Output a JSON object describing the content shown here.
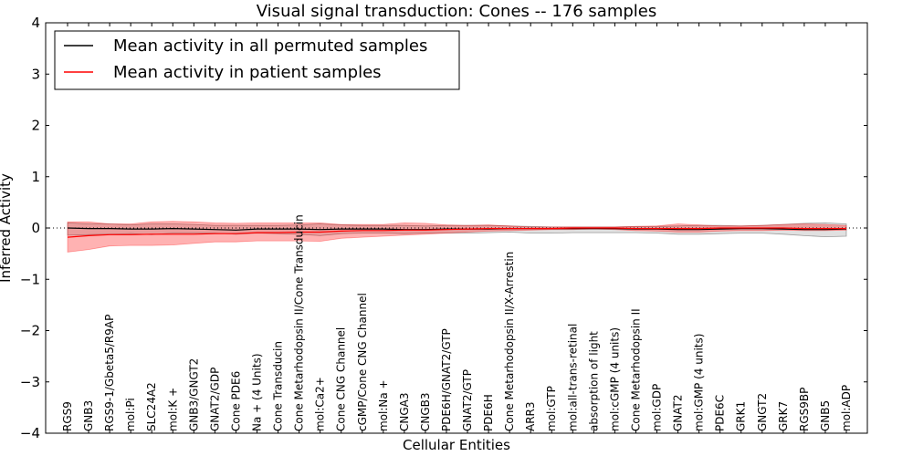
{
  "chart_data": {
    "type": "line",
    "title": "Visual signal transduction: Cones -- 176 samples",
    "xlabel": "Cellular Entities",
    "ylabel": "Inferred Activity",
    "ylim": [
      -4,
      4
    ],
    "yticks": [
      -4,
      -3,
      -2,
      -1,
      0,
      1,
      2,
      3,
      4
    ],
    "ytick_labels": [
      "−4",
      "−3",
      "−2",
      "−1",
      "0",
      "1",
      "2",
      "3",
      "4"
    ],
    "legend_position": "top-left",
    "categories": [
      "RGS9",
      "GNB3",
      "RGS9-1/Gbeta5/R9AP",
      "mol:Pi",
      "SLC24A2",
      "mol:K +",
      "GNB3/GNGT2",
      "GNAT2/GDP",
      "Cone PDE6",
      "Na + (4 Units)",
      "Cone Transducin",
      "Cone Metarhodopsin II/Cone Transducin",
      "mol:Ca2+",
      "Cone CNG Channel",
      "cGMP/Cone CNG Channel",
      "mol:Na +",
      "CNGA3",
      "CNGB3",
      "PDE6H/GNAT2/GTP",
      "GNAT2/GTP",
      "PDE6H",
      "Cone Metarhodopsin II/X-Arrestin",
      "ARR3",
      "mol:GTP",
      "mol:all-trans-retinal",
      "absorption of light",
      "mol:cGMP (4 units)",
      "Cone Metarhodopsin II",
      "mol:GDP",
      "GNAT2",
      "mol:GMP (4 units)",
      "PDE6C",
      "GRK1",
      "GNGT2",
      "GRK7",
      "RGS9BP",
      "GNB5",
      "mol:ADP"
    ],
    "series": [
      {
        "name": "Mean activity in all permuted samples",
        "color": "#000000",
        "values": [
          0,
          -0.01,
          -0.01,
          -0.02,
          -0.02,
          -0.01,
          -0.02,
          -0.03,
          -0.04,
          -0.02,
          -0.02,
          -0.02,
          -0.03,
          -0.02,
          -0.02,
          -0.02,
          -0.03,
          -0.03,
          -0.02,
          -0.02,
          -0.02,
          -0.01,
          -0.01,
          -0.01,
          -0.01,
          -0.01,
          -0.01,
          -0.02,
          -0.02,
          -0.03,
          -0.03,
          -0.02,
          -0.01,
          -0.01,
          -0.02,
          -0.03,
          -0.03,
          -0.02
        ],
        "band_low": [
          -0.14,
          -0.13,
          -0.12,
          -0.11,
          -0.13,
          -0.1,
          -0.1,
          -0.1,
          -0.12,
          -0.1,
          -0.11,
          -0.12,
          -0.15,
          -0.11,
          -0.1,
          -0.1,
          -0.11,
          -0.1,
          -0.1,
          -0.1,
          -0.09,
          -0.08,
          -0.1,
          -0.1,
          -0.09,
          -0.09,
          -0.09,
          -0.09,
          -0.1,
          -0.12,
          -0.12,
          -0.11,
          -0.1,
          -0.1,
          -0.12,
          -0.15,
          -0.17,
          -0.16
        ],
        "band_high": [
          0.1,
          0.08,
          0.08,
          0.06,
          0.08,
          0.08,
          0.07,
          0.05,
          0.05,
          0.05,
          0.05,
          0.06,
          0.08,
          0.06,
          0.05,
          0.05,
          0.05,
          0.04,
          0.05,
          0.05,
          0.05,
          0.04,
          0.03,
          0.02,
          0.02,
          0.02,
          0.02,
          0.03,
          0.03,
          0.04,
          0.05,
          0.05,
          0.04,
          0.05,
          0.07,
          0.09,
          0.1,
          0.08
        ]
      },
      {
        "name": "Mean activity in patient samples",
        "color": "#ff0000",
        "values": [
          -0.18,
          -0.15,
          -0.13,
          -0.13,
          -0.12,
          -0.12,
          -0.12,
          -0.11,
          -0.11,
          -0.09,
          -0.09,
          -0.08,
          -0.08,
          -0.06,
          -0.05,
          -0.05,
          -0.04,
          -0.04,
          -0.03,
          -0.02,
          -0.01,
          -0.01,
          -0.01,
          -0.01,
          0,
          0,
          0,
          -0.01,
          -0.01,
          -0.01,
          -0.01,
          0,
          0,
          0,
          0,
          -0.01,
          -0.01,
          -0.01
        ],
        "band_low": [
          -0.47,
          -0.42,
          -0.35,
          -0.34,
          -0.34,
          -0.33,
          -0.3,
          -0.27,
          -0.27,
          -0.25,
          -0.25,
          -0.25,
          -0.26,
          -0.2,
          -0.18,
          -0.16,
          -0.14,
          -0.12,
          -0.1,
          -0.08,
          -0.06,
          -0.05,
          -0.04,
          -0.03,
          -0.03,
          -0.02,
          -0.03,
          -0.05,
          -0.06,
          -0.08,
          -0.08,
          -0.06,
          -0.05,
          -0.05,
          -0.04,
          -0.05,
          -0.05,
          -0.04
        ],
        "band_high": [
          0.12,
          0.12,
          0.08,
          0.08,
          0.12,
          0.13,
          0.12,
          0.1,
          0.09,
          0.1,
          0.1,
          0.1,
          0.1,
          0.07,
          0.07,
          0.07,
          0.1,
          0.09,
          0.06,
          0.05,
          0.06,
          0.04,
          0.02,
          0.02,
          0.02,
          0.02,
          0.02,
          0.03,
          0.04,
          0.08,
          0.06,
          0.04,
          0.04,
          0.05,
          0.07,
          0.08,
          0.07,
          0.05
        ]
      }
    ]
  }
}
